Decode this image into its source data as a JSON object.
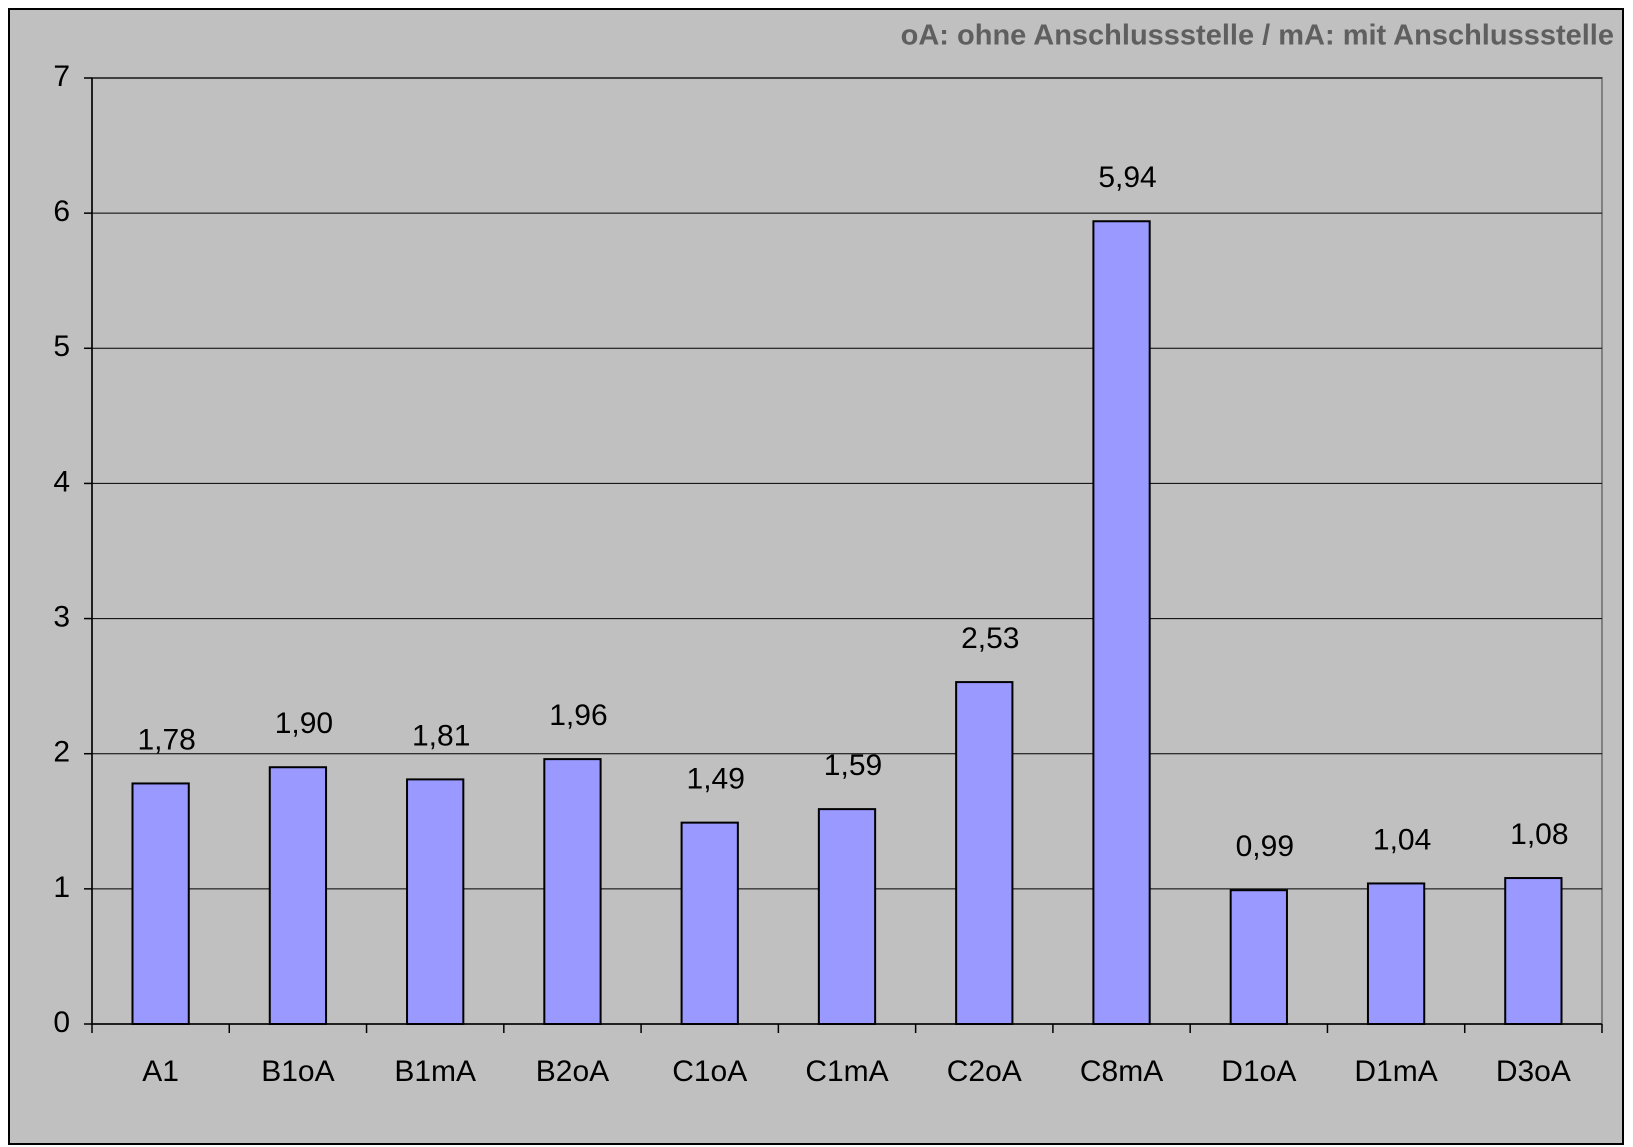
{
  "chart_data": {
    "type": "bar",
    "annotation": "oA: ohne Anschlussstelle / mA: mit Anschlussstelle",
    "categories": [
      "A1",
      "B1oA",
      "B1mA",
      "B2oA",
      "C1oA",
      "C1mA",
      "C2oA",
      "C8mA",
      "D1oA",
      "D1mA",
      "D3oA"
    ],
    "values": [
      1.78,
      1.9,
      1.81,
      1.96,
      1.49,
      1.59,
      2.53,
      5.94,
      0.99,
      1.04,
      1.08
    ],
    "value_labels": [
      "1,78",
      "1,90",
      "1,81",
      "1,96",
      "1,49",
      "1,59",
      "2,53",
      "5,94",
      "0,99",
      "1,04",
      "1,08"
    ],
    "color": "#9999ff",
    "ylim": [
      0,
      7
    ],
    "yticks": [
      0,
      1,
      2,
      3,
      4,
      5,
      6,
      7
    ],
    "grid": true
  }
}
